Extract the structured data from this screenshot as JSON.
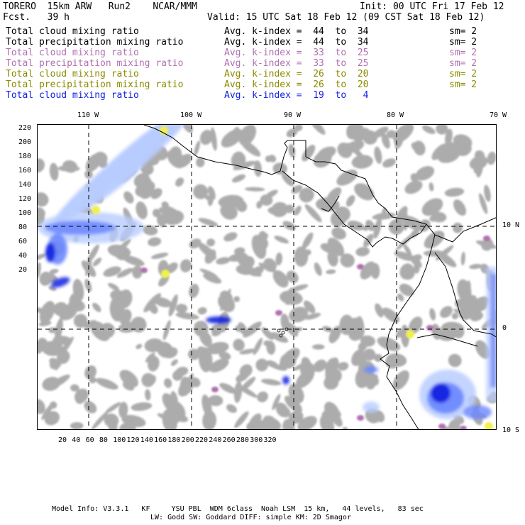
{
  "header": {
    "model": "TORERO  15km ARW   Run2    NCAR/MMM",
    "init": "Init: 00 UTC Fri 17 Feb 12",
    "fcst": "Fcst.   39 h",
    "valid": "Valid: 15 UTC Sat 18 Feb 12 (09 CST Sat 18 Feb 12)"
  },
  "legend": [
    {
      "field": "Total cloud mixing ratio",
      "kindex": "Avg. k-index =  44  to  34",
      "sm": "sm= 2",
      "color": "#000000"
    },
    {
      "field": "Total precipitation mixing ratio",
      "kindex": "Avg. k-index =  44  to  34",
      "sm": "sm= 2",
      "color": "#000000"
    },
    {
      "field": "Total cloud mixing ratio",
      "kindex": "Avg. k-index =  33  to  25",
      "sm": "sm= 2",
      "color": "#b070b0"
    },
    {
      "field": "Total precipitation mixing ratio",
      "kindex": "Avg. k-index =  33  to  25",
      "sm": "sm= 2",
      "color": "#b070b0"
    },
    {
      "field": "Total cloud mixing ratio",
      "kindex": "Avg. k-index =  26  to  20",
      "sm": "sm= 2",
      "color": "#8a8a00"
    },
    {
      "field": "Total precipitation mixing ratio",
      "kindex": "Avg. k-index =  26  to  20",
      "sm": "sm= 2",
      "color": "#8a8a00"
    },
    {
      "field": "Total cloud mixing ratio",
      "kindex": "Avg. k-index =  19  to   4",
      "sm": "",
      "color": "#1020e0"
    }
  ],
  "axes": {
    "lon_labels": [
      "110 W",
      "100 W",
      "90 W",
      "80 W",
      "70 W"
    ],
    "lat_labels": [
      "10 N",
      "0",
      "10 S"
    ],
    "y_ticks": [
      "220",
      "200",
      "180",
      "160",
      "140",
      "120",
      "100",
      "80",
      "60",
      "40",
      "20"
    ],
    "x_ticks": [
      "20",
      "40",
      "60",
      "80",
      "100",
      "120",
      "140",
      "160",
      "180",
      "200",
      "220",
      "240",
      "260",
      "280",
      "300",
      "320"
    ]
  },
  "footer": {
    "line1": "Model Info: V3.3.1   KF     YSU PBL  WDM 6class  Noah LSM  15 km,   44 levels,   83 sec",
    "line2": "LW: Godd SW: Goddard DIFF: simple KM: 2D Smagor"
  },
  "colors": {
    "cloud_gray": "#a8a8a8",
    "light_blue": "#b8ccff",
    "mid_blue": "#6a86ff",
    "dark_blue": "#1020e0",
    "magenta": "#b070b0",
    "yellow": "#f0f050"
  }
}
